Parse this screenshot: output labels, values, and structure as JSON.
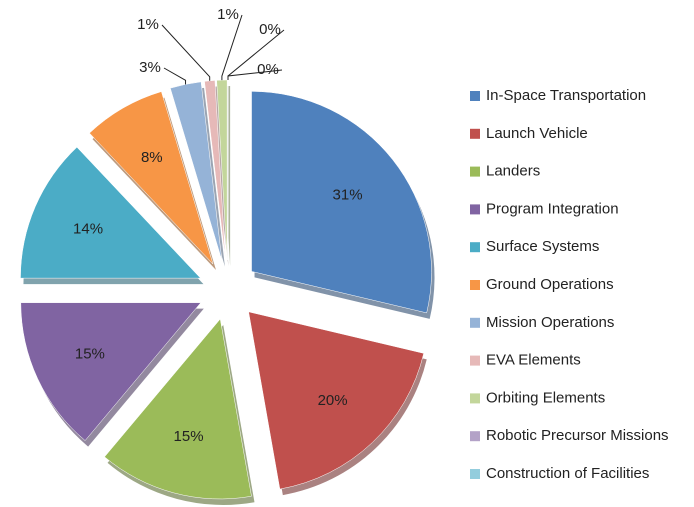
{
  "chart_data": {
    "type": "pie",
    "categories": [
      "In-Space Transportation",
      "Launch Vehicle",
      "Landers",
      "Program Integration",
      "Surface Systems",
      "Ground Operations",
      "Mission Operations",
      "EVA Elements",
      "Orbiting Elements",
      "Robotic Precursor Missions",
      "Construction of Facilities"
    ],
    "values": [
      31,
      20,
      15,
      15,
      14,
      8,
      3,
      1,
      1,
      0,
      0
    ],
    "value_labels": [
      "31%",
      "20%",
      "15%",
      "15%",
      "14%",
      "8%",
      "3%",
      "1%",
      "1%",
      "0%",
      "0%"
    ],
    "colors": [
      "#4f81bd",
      "#c0504d",
      "#9bbb59",
      "#8064a2",
      "#4bacc6",
      "#f79646",
      "#95b3d7",
      "#e6b9b8",
      "#c3d69b",
      "#b3a2c7",
      "#93cddd"
    ],
    "legend": "right"
  }
}
